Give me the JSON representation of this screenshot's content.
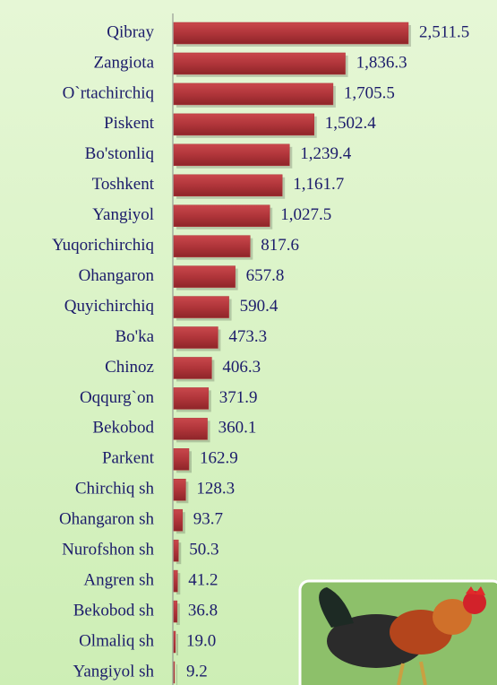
{
  "chart_data": {
    "type": "bar",
    "orientation": "horizontal",
    "color": "#b0353a",
    "categories": [
      "Qibray",
      "Zangiota",
      "O`rtachirchiq",
      "Piskent",
      "Bo'stonliq",
      "Toshkent",
      "Yangiyol",
      "Yuqorichirchiq",
      "Ohangaron",
      "Quyichirchiq",
      "Bo'ka",
      "Chinoz",
      "Oqqurg`on",
      "Bekobod",
      "Parkent",
      "Chirchiq sh",
      "Ohangaron sh",
      "Nurofshon sh",
      "Angren sh",
      "Bekobod sh",
      "Olmaliq sh",
      "Yangiyol sh"
    ],
    "values": [
      2511.5,
      1836.3,
      1705.5,
      1502.4,
      1239.4,
      1161.7,
      1027.5,
      817.6,
      657.8,
      590.4,
      473.3,
      406.3,
      371.9,
      360.1,
      162.9,
      128.3,
      93.7,
      50.3,
      41.2,
      36.8,
      19.0,
      9.2
    ],
    "value_labels": [
      "2,511.5",
      "1,836.3",
      "1,705.5",
      "1,502.4",
      "1,239.4",
      "1,161.7",
      "1,027.5",
      "817.6",
      "657.8",
      "590.4",
      "473.3",
      "406.3",
      "371.9",
      "360.1",
      "162.9",
      "128.3",
      "93.7",
      "50.3",
      "41.2",
      "36.8",
      "19.0",
      "9.2"
    ]
  }
}
